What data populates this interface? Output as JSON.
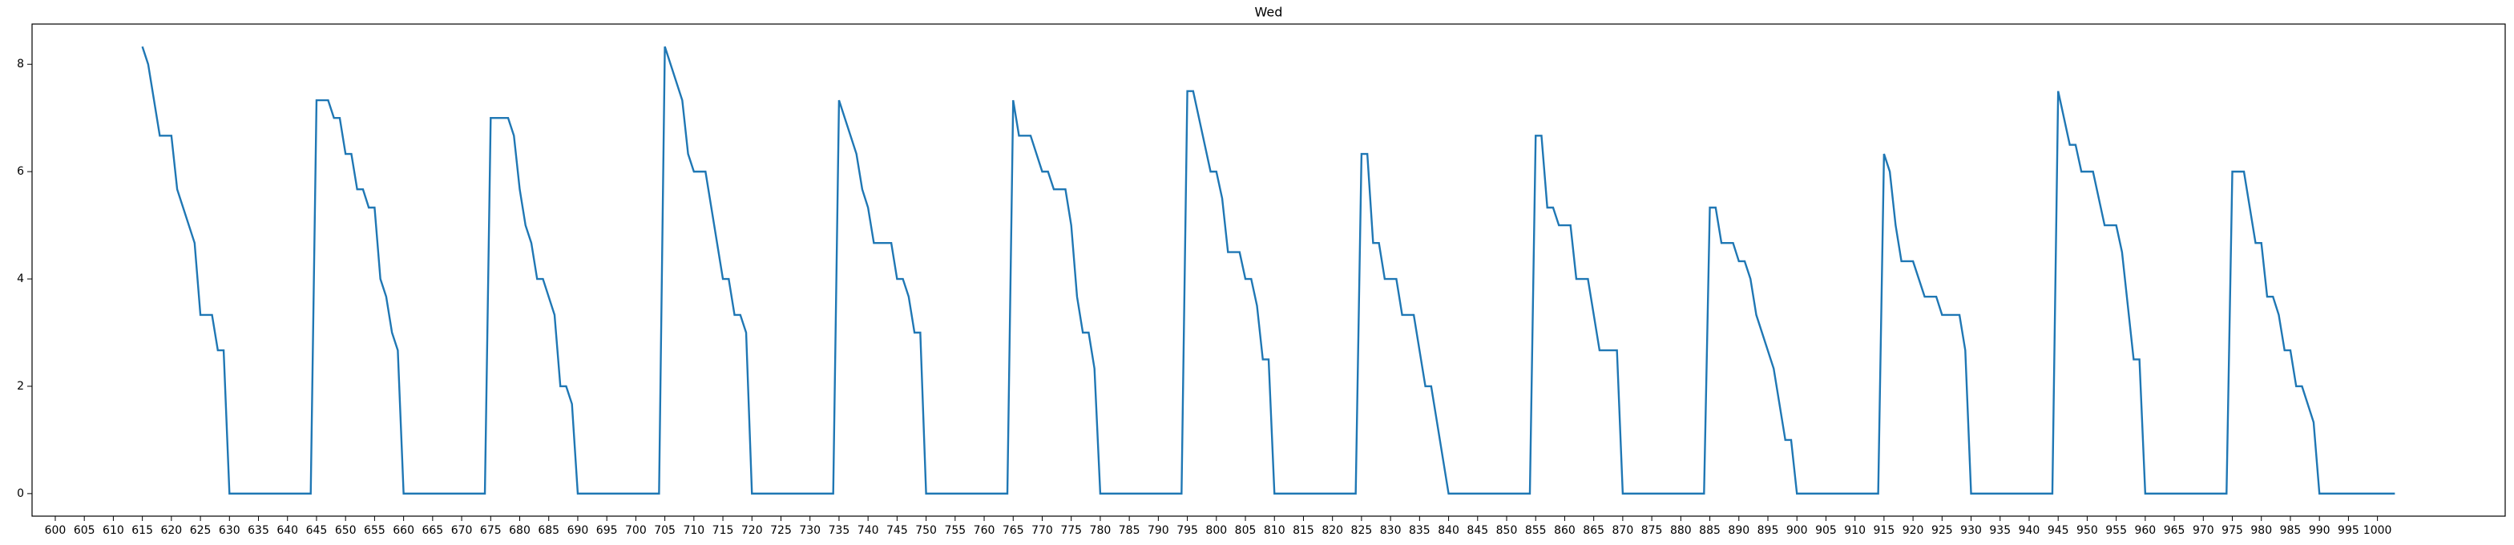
{
  "chart_data": {
    "type": "line",
    "title": "Wed",
    "color": "#1f77b4",
    "x": [
      615,
      616,
      618,
      620,
      621,
      624,
      625,
      627,
      628,
      629,
      630,
      644,
      645,
      647,
      648,
      649,
      650,
      651,
      652,
      653,
      654,
      655,
      656,
      657,
      658,
      659,
      660,
      674,
      675,
      678,
      679,
      680,
      681,
      682,
      683,
      684,
      686,
      687,
      688,
      689,
      690,
      704,
      705,
      708,
      709,
      710,
      712,
      715,
      716,
      717,
      718,
      719,
      720,
      734,
      735,
      738,
      739,
      740,
      741,
      744,
      745,
      746,
      747,
      748,
      749,
      750,
      764,
      765,
      766,
      768,
      770,
      771,
      772,
      774,
      775,
      776,
      777,
      778,
      779,
      780,
      794,
      795,
      796,
      799,
      800,
      801,
      802,
      804,
      805,
      806,
      807,
      808,
      809,
      810,
      824,
      825,
      826,
      827,
      828,
      829,
      831,
      832,
      834,
      836,
      837,
      840,
      854,
      855,
      856,
      857,
      858,
      859,
      861,
      862,
      864,
      866,
      869,
      870,
      884,
      885,
      886,
      887,
      889,
      890,
      891,
      892,
      893,
      896,
      898,
      899,
      900,
      914,
      915,
      916,
      917,
      918,
      920,
      922,
      924,
      925,
      928,
      929,
      930,
      944,
      945,
      947,
      948,
      949,
      951,
      953,
      955,
      956,
      958,
      959,
      960,
      974,
      975,
      977,
      979,
      980,
      981,
      982,
      983,
      984,
      985,
      986,
      987,
      989,
      990,
      1003
    ],
    "values": [
      8.33,
      8.0,
      6.67,
      6.67,
      5.67,
      4.67,
      3.33,
      3.33,
      2.67,
      2.67,
      0,
      0,
      7.33,
      7.33,
      7.0,
      7.0,
      6.33,
      6.33,
      5.67,
      5.67,
      5.33,
      5.33,
      4.0,
      3.67,
      3.0,
      2.67,
      0,
      0,
      7.0,
      7.0,
      6.67,
      5.67,
      5.0,
      4.67,
      4.0,
      4.0,
      3.33,
      2.0,
      2.0,
      1.67,
      0,
      0,
      8.33,
      7.33,
      6.33,
      6.0,
      6.0,
      4.0,
      4.0,
      3.33,
      3.33,
      3.0,
      0,
      0,
      7.33,
      6.33,
      5.67,
      5.33,
      4.67,
      4.67,
      4.0,
      4.0,
      3.67,
      3.0,
      3.0,
      0,
      0,
      7.33,
      6.67,
      6.67,
      6.0,
      6.0,
      5.67,
      5.67,
      5.0,
      3.67,
      3.0,
      3.0,
      2.33,
      0,
      0,
      7.5,
      7.5,
      6.0,
      6.0,
      5.5,
      4.5,
      4.5,
      4.0,
      4.0,
      3.5,
      2.5,
      2.5,
      0,
      0,
      6.33,
      6.33,
      4.67,
      4.67,
      4.0,
      4.0,
      3.33,
      3.33,
      2.0,
      2.0,
      0,
      0,
      6.67,
      6.67,
      5.33,
      5.33,
      5.0,
      5.0,
      4.0,
      4.0,
      2.67,
      2.67,
      0,
      0,
      5.33,
      5.33,
      4.67,
      4.67,
      4.33,
      4.33,
      4.0,
      3.33,
      2.33,
      1.0,
      1.0,
      0,
      0,
      6.33,
      6.0,
      5.0,
      4.33,
      4.33,
      3.67,
      3.67,
      3.33,
      3.33,
      2.67,
      0,
      0,
      7.5,
      6.5,
      6.5,
      6.0,
      6.0,
      5.0,
      5.0,
      4.5,
      2.5,
      2.5,
      0,
      0,
      6.0,
      6.0,
      4.67,
      4.67,
      3.67,
      3.67,
      3.33,
      2.67,
      2.67,
      2.0,
      2.0,
      1.33,
      0,
      0
    ],
    "xlim": [
      596,
      1022
    ],
    "xticks": [
      600,
      605,
      610,
      615,
      620,
      625,
      630,
      635,
      640,
      645,
      650,
      655,
      660,
      665,
      670,
      675,
      680,
      685,
      690,
      695,
      700,
      705,
      710,
      715,
      720,
      725,
      730,
      735,
      740,
      745,
      750,
      755,
      760,
      765,
      770,
      775,
      780,
      785,
      790,
      795,
      800,
      805,
      810,
      815,
      820,
      825,
      830,
      835,
      840,
      845,
      850,
      855,
      860,
      865,
      870,
      875,
      880,
      885,
      890,
      895,
      900,
      905,
      910,
      915,
      920,
      925,
      930,
      935,
      940,
      945,
      950,
      955,
      960,
      965,
      970,
      975,
      980,
      985,
      990,
      995,
      1000
    ],
    "ylim": [
      -0.42,
      8.75
    ],
    "yticks": [
      0,
      2,
      4,
      6,
      8
    ]
  }
}
